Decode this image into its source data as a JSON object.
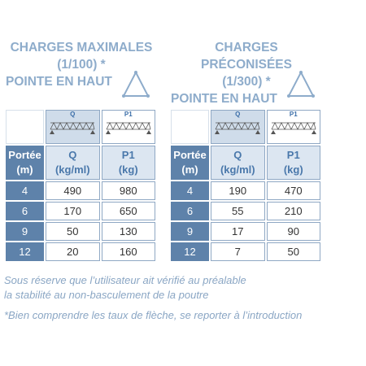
{
  "tables": [
    {
      "heading": [
        "CHARGES MAXIMALES",
        "(1/100) *",
        "POINTE EN HAUT"
      ],
      "icon_labels": [
        "Q",
        "P1"
      ],
      "header": [
        [
          "Portée",
          "(m)"
        ],
        [
          "Q",
          "(kg/ml)"
        ],
        [
          "P1",
          "(kg)"
        ]
      ],
      "rows": [
        [
          4,
          490,
          980
        ],
        [
          6,
          170,
          650
        ],
        [
          9,
          50,
          130
        ],
        [
          12,
          20,
          160
        ]
      ]
    },
    {
      "heading": [
        "CHARGES PRÉCONISÉES",
        "(1/300) *",
        "POINTE EN HAUT"
      ],
      "icon_labels": [
        "Q",
        "P1"
      ],
      "header": [
        [
          "Portée",
          "(m)"
        ],
        [
          "Q",
          "(kg/ml)"
        ],
        [
          "P1",
          "(kg)"
        ]
      ],
      "rows": [
        [
          4,
          190,
          470
        ],
        [
          6,
          55,
          210
        ],
        [
          9,
          17,
          90
        ],
        [
          12,
          7,
          50
        ]
      ]
    }
  ],
  "notes": [
    "Sous réserve que l’utilisateur ait vérifié au préalable",
    "la stabilité au non-basculement de la poutre",
    "*Bien comprendre les taux de flèche, se reporter à l’introduction"
  ]
}
